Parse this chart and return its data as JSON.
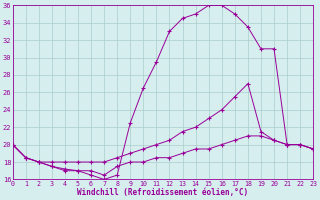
{
  "xlabel": "Windchill (Refroidissement éolien,°C)",
  "xmin": 0,
  "xmax": 23,
  "ymin": 16,
  "ymax": 36,
  "yticks": [
    16,
    18,
    20,
    22,
    24,
    26,
    28,
    30,
    32,
    34,
    36
  ],
  "xticks": [
    0,
    1,
    2,
    3,
    4,
    5,
    6,
    7,
    8,
    9,
    10,
    11,
    12,
    13,
    14,
    15,
    16,
    17,
    18,
    19,
    20,
    21,
    22,
    23
  ],
  "background_color": "#d6eeee",
  "line_color": "#990099",
  "grid_color": "#aacccc",
  "curve1_x": [
    0,
    1,
    2,
    3,
    4,
    5,
    6,
    7,
    8,
    9,
    10,
    11,
    12,
    13,
    14,
    15,
    16,
    17,
    18,
    19,
    20,
    21,
    22,
    23
  ],
  "curve1_y": [
    20.0,
    18.5,
    18.0,
    17.5,
    17.0,
    17.0,
    16.5,
    16.0,
    16.5,
    22.5,
    26.5,
    29.5,
    33.0,
    34.5,
    35.0,
    36.0,
    36.0,
    35.0,
    33.5,
    31.0,
    31.0,
    20.0,
    20.0,
    19.5
  ],
  "curve2_x": [
    0,
    1,
    2,
    3,
    4,
    5,
    6,
    7,
    8,
    9,
    10,
    11,
    12,
    13,
    14,
    15,
    16,
    17,
    18,
    19,
    20,
    21,
    22,
    23
  ],
  "curve2_y": [
    20.0,
    18.5,
    18.0,
    18.0,
    18.0,
    18.0,
    18.0,
    18.0,
    18.5,
    19.0,
    19.5,
    20.0,
    20.5,
    21.5,
    22.0,
    23.0,
    24.0,
    25.5,
    27.0,
    21.5,
    20.5,
    20.0,
    20.0,
    19.5
  ],
  "curve3_x": [
    0,
    1,
    2,
    3,
    4,
    5,
    6,
    7,
    8,
    9,
    10,
    11,
    12,
    13,
    14,
    15,
    16,
    17,
    18,
    19,
    20,
    21,
    22,
    23
  ],
  "curve3_y": [
    20.0,
    18.5,
    18.0,
    17.5,
    17.2,
    17.0,
    17.0,
    16.5,
    17.5,
    18.0,
    18.0,
    18.5,
    18.5,
    19.0,
    19.5,
    19.5,
    20.0,
    20.5,
    21.0,
    21.0,
    20.5,
    20.0,
    20.0,
    19.5
  ]
}
